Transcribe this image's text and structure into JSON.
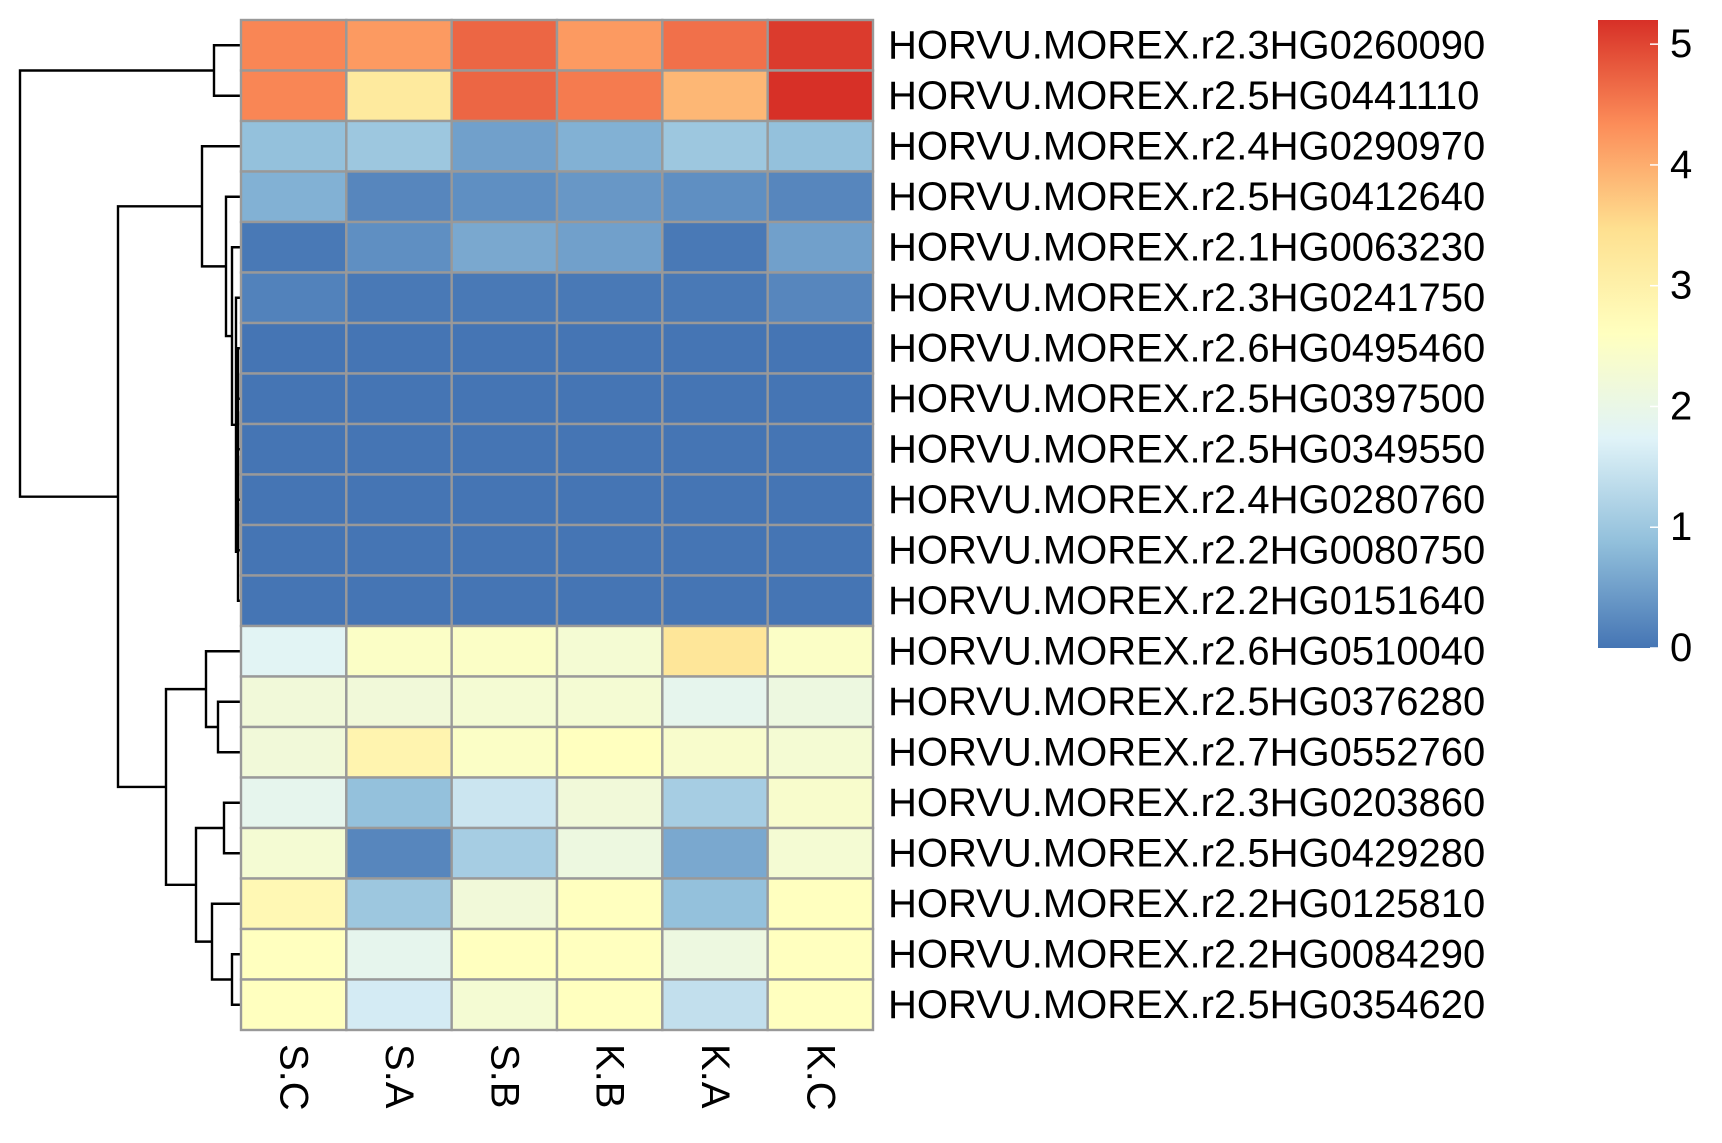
{
  "chart_data": {
    "type": "heatmap",
    "columns": [
      "S.C",
      "S.A",
      "S.B",
      "K.B",
      "K.A",
      "K.C"
    ],
    "rows": [
      "HORVU.MOREX.r2.3HG0260090",
      "HORVU.MOREX.r2.5HG0441110",
      "HORVU.MOREX.r2.4HG0290970",
      "HORVU.MOREX.r2.5HG0412640",
      "HORVU.MOREX.r2.1HG0063230",
      "HORVU.MOREX.r2.3HG0241750",
      "HORVU.MOREX.r2.6HG0495460",
      "HORVU.MOREX.r2.5HG0397500",
      "HORVU.MOREX.r2.5HG0349550",
      "HORVU.MOREX.r2.4HG0280760",
      "HORVU.MOREX.r2.2HG0080750",
      "HORVU.MOREX.r2.2HG0151640",
      "HORVU.MOREX.r2.6HG0510040",
      "HORVU.MOREX.r2.5HG0376280",
      "HORVU.MOREX.r2.7HG0552760",
      "HORVU.MOREX.r2.3HG0203860",
      "HORVU.MOREX.r2.5HG0429280",
      "HORVU.MOREX.r2.2HG0125810",
      "HORVU.MOREX.r2.2HG0084290",
      "HORVU.MOREX.r2.5HG0354620"
    ],
    "values": [
      [
        4.4,
        4.2,
        4.7,
        4.2,
        4.6,
        5.1
      ],
      [
        4.4,
        3.2,
        4.7,
        4.5,
        3.9,
        5.2
      ],
      [
        0.9,
        1.0,
        0.5,
        0.7,
        1.0,
        0.9
      ],
      [
        0.7,
        0.2,
        0.3,
        0.4,
        0.3,
        0.2
      ],
      [
        0.05,
        0.3,
        0.6,
        0.5,
        0.05,
        0.5
      ],
      [
        0.15,
        0.05,
        0.05,
        0.05,
        0.05,
        0.2
      ],
      [
        0.0,
        0.0,
        0.0,
        0.0,
        0.0,
        0.0
      ],
      [
        0.0,
        0.0,
        0.0,
        0.0,
        0.0,
        0.0
      ],
      [
        0.0,
        0.0,
        0.0,
        0.0,
        0.0,
        0.0
      ],
      [
        0.0,
        0.0,
        0.0,
        0.0,
        0.0,
        0.0
      ],
      [
        0.0,
        0.0,
        0.0,
        0.0,
        0.0,
        0.0
      ],
      [
        0.0,
        0.0,
        0.0,
        0.0,
        0.0,
        0.0
      ],
      [
        1.8,
        2.5,
        2.5,
        2.3,
        3.3,
        2.5
      ],
      [
        2.2,
        2.2,
        2.3,
        2.3,
        1.9,
        2.1
      ],
      [
        2.2,
        2.9,
        2.5,
        2.6,
        2.4,
        2.3
      ],
      [
        1.9,
        0.9,
        1.5,
        2.2,
        1.1,
        2.4
      ],
      [
        2.3,
        0.2,
        1.1,
        2.1,
        0.6,
        2.3
      ],
      [
        2.8,
        1.0,
        2.2,
        2.6,
        0.9,
        2.6
      ],
      [
        2.6,
        1.9,
        2.6,
        2.6,
        2.1,
        2.6
      ],
      [
        2.6,
        1.6,
        2.3,
        2.6,
        1.4,
        2.6
      ]
    ],
    "legend": {
      "min": 0,
      "max": 5.2,
      "ticks": [
        0,
        1,
        2,
        3,
        4,
        5
      ],
      "position": "right",
      "colors": [
        "#4575B4",
        "#91BFDB",
        "#E0F3F8",
        "#FFFFBF",
        "#FEE090",
        "#FC8D59",
        "#D73027"
      ]
    },
    "cell_border_color": "#999999",
    "title": "",
    "xlabel": "",
    "ylabel": ""
  }
}
